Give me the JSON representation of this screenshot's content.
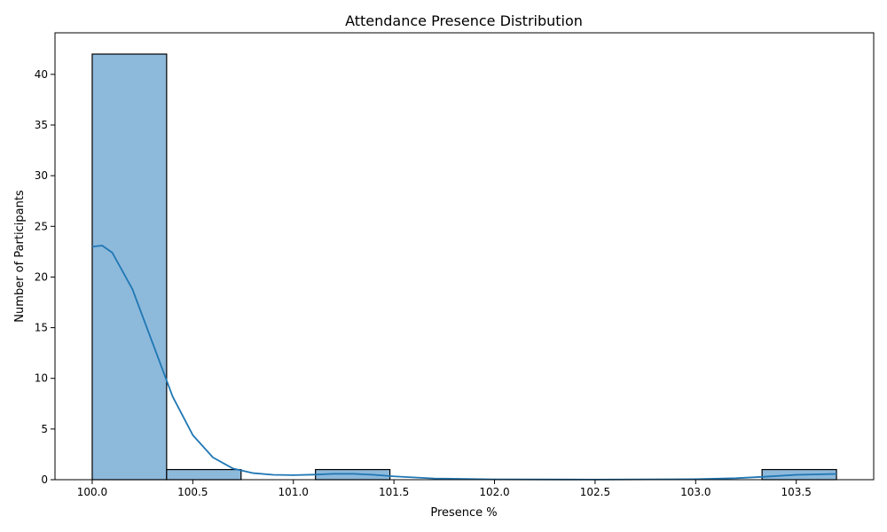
{
  "chart_data": {
    "type": "bar",
    "title": "Attendance Presence Distribution",
    "xlabel": "Presence %",
    "ylabel": "Number of Participants",
    "xlim": [
      99.815,
      103.885
    ],
    "ylim": [
      0,
      44.1
    ],
    "x_ticks": [
      "100.0",
      "100.5",
      "101.0",
      "101.5",
      "102.0",
      "102.5",
      "103.0",
      "103.5"
    ],
    "y_ticks": [
      "0",
      "5",
      "10",
      "15",
      "20",
      "25",
      "30",
      "35",
      "40"
    ],
    "bins": [
      {
        "x0": 100.0,
        "x1": 100.37,
        "count": 42
      },
      {
        "x0": 100.37,
        "x1": 100.74,
        "count": 1
      },
      {
        "x0": 100.74,
        "x1": 101.11,
        "count": 0
      },
      {
        "x0": 101.11,
        "x1": 101.48,
        "count": 1
      },
      {
        "x0": 101.48,
        "x1": 101.85,
        "count": 0
      },
      {
        "x0": 101.85,
        "x1": 102.22,
        "count": 0
      },
      {
        "x0": 102.22,
        "x1": 102.59,
        "count": 0
      },
      {
        "x0": 102.59,
        "x1": 102.96,
        "count": 0
      },
      {
        "x0": 102.96,
        "x1": 103.33,
        "count": 0
      },
      {
        "x0": 103.33,
        "x1": 103.7,
        "count": 1
      }
    ],
    "kde": {
      "x": [
        100.0,
        100.05,
        100.1,
        100.2,
        100.3,
        100.4,
        100.5,
        100.6,
        100.7,
        100.8,
        100.9,
        101.0,
        101.1,
        101.2,
        101.3,
        101.4,
        101.5,
        101.7,
        102.0,
        102.5,
        103.0,
        103.2,
        103.35,
        103.5,
        103.7
      ],
      "y": [
        23.0,
        23.1,
        22.4,
        18.8,
        13.5,
        8.2,
        4.4,
        2.2,
        1.1,
        0.65,
        0.48,
        0.45,
        0.5,
        0.58,
        0.58,
        0.48,
        0.33,
        0.12,
        0.03,
        0.01,
        0.05,
        0.15,
        0.3,
        0.48,
        0.57
      ]
    },
    "bar_color": "#8db9db",
    "bar_edge": "#000000",
    "line_color": "#1f77b4",
    "grid": false,
    "legend": "none"
  }
}
